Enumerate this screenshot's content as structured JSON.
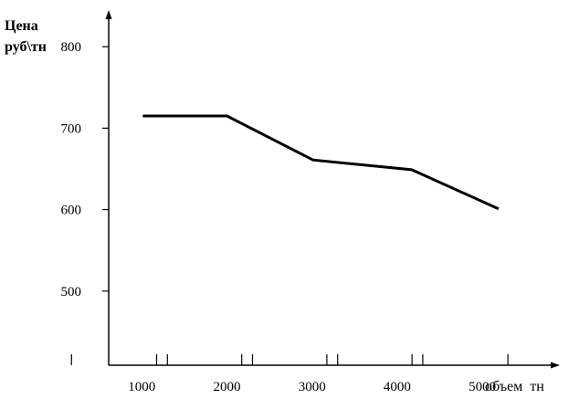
{
  "chart_data": {
    "type": "line",
    "ylabel_line1": "Цена",
    "ylabel_line2": "руб\\тн",
    "xlabel": "объем  тн",
    "x_ticks": [
      "1000",
      "2000",
      "3000",
      "4000",
      "5000"
    ],
    "y_ticks": [
      "500",
      "600",
      "700",
      "800"
    ],
    "xlim": [
      600,
      5900
    ],
    "ylim": [
      409,
      845
    ],
    "grid": false,
    "series": [
      {
        "x": [
          1000,
          1990,
          3000,
          4160,
          5180
        ],
        "y": [
          715,
          715,
          661,
          649,
          601
        ]
      }
    ]
  }
}
